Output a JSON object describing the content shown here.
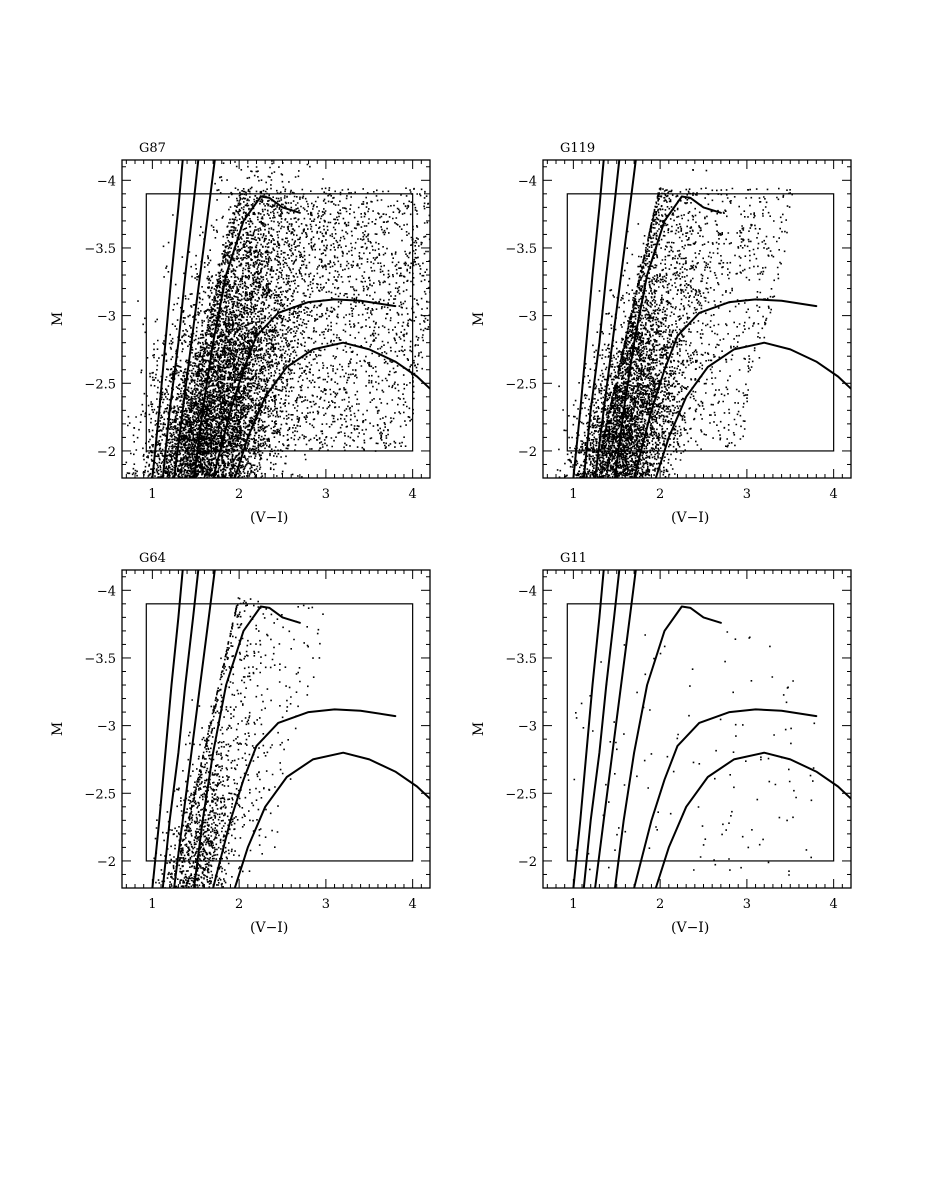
{
  "chart_data": [
    {
      "type": "scatter",
      "title": "G87",
      "xlabel_main": "(V−I)",
      "xlabel_sub": "o",
      "ylabel_main": "M",
      "ylabel_sub": "I",
      "xlim": [
        0.65,
        4.2
      ],
      "ylim": [
        -1.8,
        -4.15
      ],
      "y_inverted": true,
      "x_ticks": [
        1,
        2,
        3,
        4
      ],
      "x_ticklabels": [
        "1",
        "2",
        "3",
        "4"
      ],
      "y_ticks": [
        -4,
        -3.5,
        -3,
        -2.5,
        -2
      ],
      "y_ticklabels": [
        "−4",
        "−3.5",
        "−3",
        "−2.5",
        "−2"
      ],
      "selection_box": {
        "x": [
          0.93,
          4.0
        ],
        "y": [
          -2.0,
          -3.9
        ]
      },
      "star_density": "very high",
      "star_count_approx": 9000
    },
    {
      "type": "scatter",
      "title": "G119",
      "xlabel_main": "(V−I)",
      "xlabel_sub": "o",
      "ylabel_main": "M",
      "ylabel_sub": "I",
      "xlim": [
        0.65,
        4.2
      ],
      "ylim": [
        -1.8,
        -4.15
      ],
      "y_inverted": true,
      "x_ticks": [
        1,
        2,
        3,
        4
      ],
      "x_ticklabels": [
        "1",
        "2",
        "3",
        "4"
      ],
      "y_ticks": [
        -4,
        -3.5,
        -3,
        -2.5,
        -2
      ],
      "y_ticklabels": [
        "−4",
        "−3.5",
        "−3",
        "−2.5",
        "−2"
      ],
      "selection_box": {
        "x": [
          0.93,
          4.0
        ],
        "y": [
          -2.0,
          -3.9
        ]
      },
      "star_density": "high",
      "star_count_approx": 5200
    },
    {
      "type": "scatter",
      "title": "G64",
      "xlabel_main": "(V−I)",
      "xlabel_sub": "o",
      "ylabel_main": "M",
      "ylabel_sub": "I",
      "xlim": [
        0.65,
        4.2
      ],
      "ylim": [
        -1.8,
        -4.15
      ],
      "y_inverted": true,
      "x_ticks": [
        1,
        2,
        3,
        4
      ],
      "x_ticklabels": [
        "1",
        "2",
        "3",
        "4"
      ],
      "y_ticks": [
        -4,
        -3.5,
        -3,
        -2.5,
        -2
      ],
      "y_ticklabels": [
        "−4",
        "−3.5",
        "−3",
        "−2.5",
        "−2"
      ],
      "selection_box": {
        "x": [
          0.93,
          4.0
        ],
        "y": [
          -2.0,
          -3.9
        ]
      },
      "star_density": "medium",
      "star_count_approx": 1500
    },
    {
      "type": "scatter",
      "title": "G11",
      "xlabel_main": "(V−I)",
      "xlabel_sub": "o",
      "ylabel_main": "M",
      "ylabel_sub": "I",
      "xlim": [
        0.65,
        4.2
      ],
      "ylim": [
        -1.8,
        -4.15
      ],
      "y_inverted": true,
      "x_ticks": [
        1,
        2,
        3,
        4
      ],
      "x_ticklabels": [
        "1",
        "2",
        "3",
        "4"
      ],
      "y_ticks": [
        -4,
        -3.5,
        -3,
        -2.5,
        -2
      ],
      "y_ticklabels": [
        "−4",
        "−3.5",
        "−3",
        "−2.5",
        "−2"
      ],
      "selection_box": {
        "x": [
          0.93,
          4.0
        ],
        "y": [
          -2.0,
          -3.9
        ]
      },
      "star_density": "sparse",
      "star_count_approx": 130
    }
  ],
  "isochrones": [
    [
      [
        1.0,
        -1.8
      ],
      [
        1.08,
        -2.3
      ],
      [
        1.15,
        -2.8
      ],
      [
        1.22,
        -3.3
      ],
      [
        1.3,
        -3.8
      ],
      [
        1.35,
        -4.15
      ]
    ],
    [
      [
        1.12,
        -1.8
      ],
      [
        1.2,
        -2.3
      ],
      [
        1.3,
        -2.8
      ],
      [
        1.38,
        -3.3
      ],
      [
        1.47,
        -3.8
      ],
      [
        1.53,
        -4.15
      ]
    ],
    [
      [
        1.25,
        -1.8
      ],
      [
        1.35,
        -2.3
      ],
      [
        1.45,
        -2.8
      ],
      [
        1.55,
        -3.3
      ],
      [
        1.65,
        -3.8
      ],
      [
        1.72,
        -4.15
      ]
    ],
    [
      [
        1.48,
        -1.8
      ],
      [
        1.58,
        -2.3
      ],
      [
        1.7,
        -2.8
      ],
      [
        1.85,
        -3.3
      ],
      [
        2.05,
        -3.7
      ],
      [
        2.25,
        -3.88
      ],
      [
        2.35,
        -3.87
      ],
      [
        2.5,
        -3.8
      ],
      [
        2.7,
        -3.76
      ]
    ],
    [
      [
        1.7,
        -1.8
      ],
      [
        1.9,
        -2.3
      ],
      [
        2.05,
        -2.6
      ],
      [
        2.2,
        -2.85
      ],
      [
        2.45,
        -3.02
      ],
      [
        2.8,
        -3.1
      ],
      [
        3.1,
        -3.12
      ],
      [
        3.4,
        -3.11
      ],
      [
        3.8,
        -3.07
      ]
    ],
    [
      [
        1.95,
        -1.8
      ],
      [
        2.1,
        -2.1
      ],
      [
        2.3,
        -2.4
      ],
      [
        2.55,
        -2.62
      ],
      [
        2.85,
        -2.75
      ],
      [
        3.2,
        -2.8
      ],
      [
        3.5,
        -2.75
      ],
      [
        3.8,
        -2.66
      ],
      [
        4.05,
        -2.55
      ],
      [
        4.2,
        -2.46
      ]
    ]
  ]
}
